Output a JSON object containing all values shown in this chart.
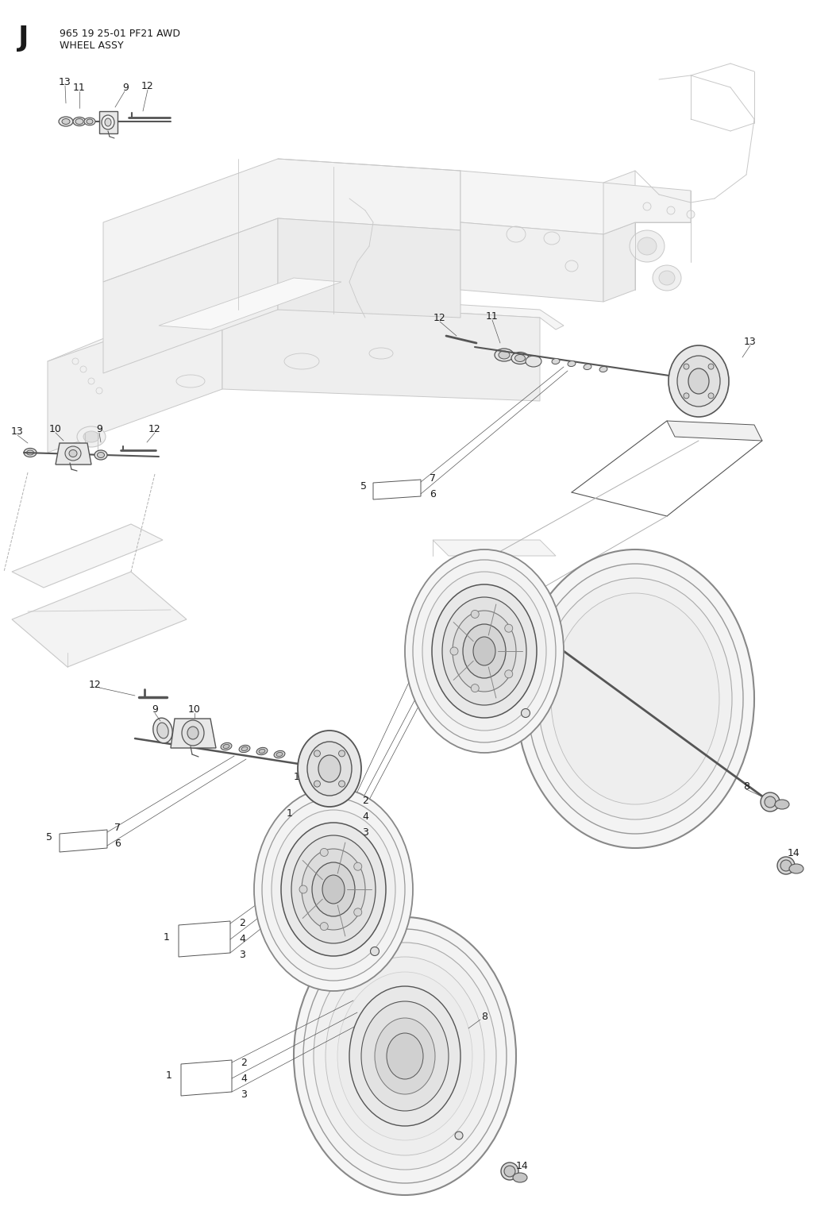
{
  "title_letter": "J",
  "title_line1": "965 19 25-01 PF21 AWD",
  "title_line2": "WHEEL ASSY",
  "bg_color": "#ffffff",
  "line_color": "#555555",
  "light_line_color": "#b0b0b0",
  "chassis_color": "#c8c8c8",
  "text_color": "#1a1a1a",
  "fig_w": 10.24,
  "fig_h": 15.49,
  "dpi": 100
}
